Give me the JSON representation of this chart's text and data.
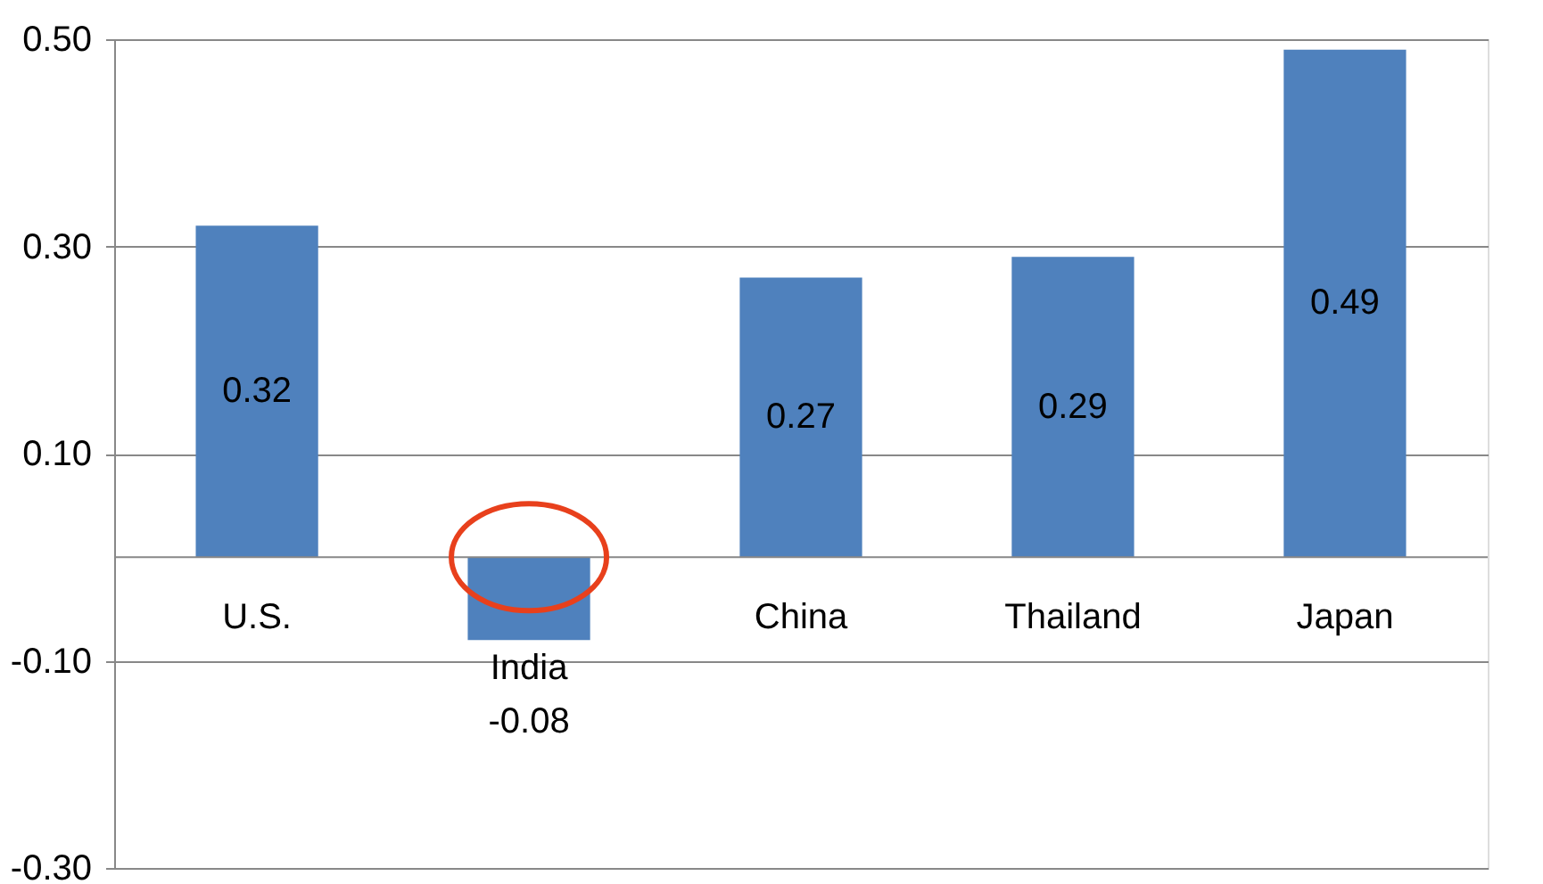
{
  "chart_data": {
    "type": "bar",
    "categories": [
      "U.S.",
      "India",
      "China",
      "Thailand",
      "Japan"
    ],
    "values": [
      0.32,
      -0.08,
      0.27,
      0.29,
      0.49
    ],
    "color": "#4f81bd",
    "ylim": [
      -0.3,
      0.5
    ],
    "yticks": [
      {
        "value": -0.3,
        "label": "-0.30"
      },
      {
        "value": -0.1,
        "label": "-0.10"
      },
      {
        "value": 0.1,
        "label": "0.10"
      },
      {
        "value": 0.3,
        "label": "0.30"
      },
      {
        "value": 0.5,
        "label": "0.50"
      }
    ],
    "grid": "y",
    "data_labels": true
  }
}
